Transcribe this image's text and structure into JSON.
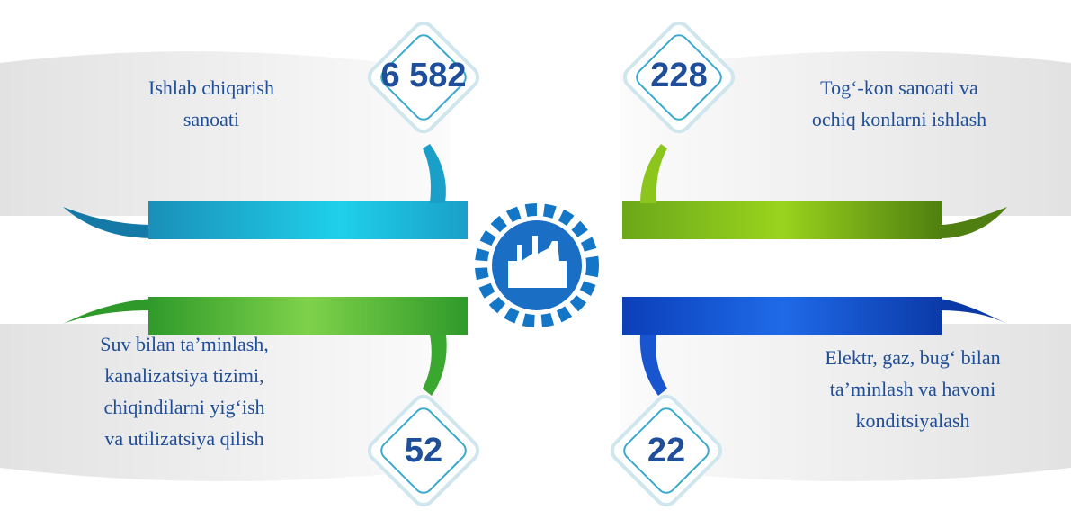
{
  "items": [
    {
      "value": "6 582",
      "label": [
        "Ishlab chiqarish",
        "sanoati"
      ]
    },
    {
      "value": "228",
      "label": [
        "Tog‘-kon sanoati va",
        "ochiq konlarni ishlash"
      ]
    },
    {
      "value": "52",
      "label": [
        "Suv bilan ta’minlash,",
        "kanalizatsiya tizimi,",
        "chiqindilarni yig‘ish",
        "va utilizatsiya qilish"
      ]
    },
    {
      "value": "22",
      "label": [
        "Elektr, gaz, bug‘ bilan",
        "ta’minlash va havoni",
        "konditsiyalash"
      ]
    }
  ]
}
